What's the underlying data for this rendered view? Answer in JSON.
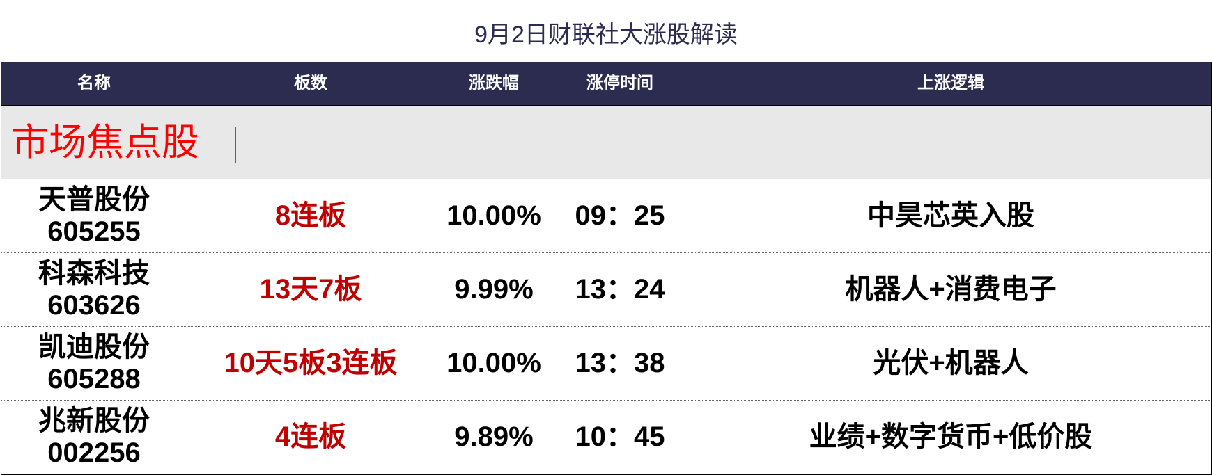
{
  "title": "9月2日财联社大涨股解读",
  "headers": [
    "名称",
    "板数",
    "涨跌幅",
    "涨停时间",
    "上涨逻辑"
  ],
  "section": {
    "label": "市场焦点股",
    "color": "#ff0000"
  },
  "colors": {
    "header_bg": "#2c2c50",
    "band_bg": "#e8e8e8",
    "board_text": "#c00000"
  },
  "rows": [
    {
      "name": "天普股份",
      "code": "605255",
      "board": "8连板",
      "change": "10.00%",
      "time": "09：25",
      "logic": "中昊芯英入股"
    },
    {
      "name": "科森科技",
      "code": "603626",
      "board": "13天7板",
      "change": "9.99%",
      "time": "13：24",
      "logic": "机器人+消费电子"
    },
    {
      "name": "凯迪股份",
      "code": "605288",
      "board": "10天5板3连板",
      "change": "10.00%",
      "time": "13：38",
      "logic": "光伏+机器人"
    },
    {
      "name": "兆新股份",
      "code": "002256",
      "board": "4连板",
      "change": "9.89%",
      "time": "10：45",
      "logic": "业绩+数字货币+低价股"
    }
  ]
}
